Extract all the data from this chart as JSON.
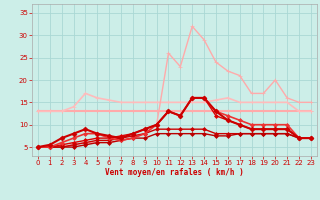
{
  "xlabel": "Vent moyen/en rafales ( km/h )",
  "xlim": [
    -0.5,
    23.5
  ],
  "ylim": [
    3,
    37
  ],
  "yticks": [
    5,
    10,
    15,
    20,
    25,
    30,
    35
  ],
  "xticks": [
    0,
    1,
    2,
    3,
    4,
    5,
    6,
    7,
    8,
    9,
    10,
    11,
    12,
    13,
    14,
    15,
    16,
    17,
    18,
    19,
    20,
    21,
    22,
    23
  ],
  "bg_color": "#cceee8",
  "grid_color": "#aad8d4",
  "lines": [
    {
      "y": [
        13,
        13,
        13,
        13,
        13,
        13,
        13,
        13,
        13,
        13,
        13,
        13,
        13,
        13,
        13,
        13,
        13,
        13,
        13,
        13,
        13,
        13,
        13,
        13
      ],
      "color": "#ffaaaa",
      "lw": 1.5,
      "marker": "+",
      "ms": 3,
      "zorder": 2
    },
    {
      "y": [
        13,
        13,
        13,
        14,
        17,
        16,
        15.5,
        15,
        15,
        15,
        15,
        15,
        15,
        15,
        15,
        15.5,
        16,
        15,
        15,
        15,
        15,
        15,
        13,
        13
      ],
      "color": "#ffbbbb",
      "lw": 1.2,
      "marker": "+",
      "ms": 3,
      "zorder": 2
    },
    {
      "y": [
        5,
        5,
        5,
        5.5,
        6,
        6,
        6,
        6.5,
        7,
        8,
        10,
        26,
        23,
        32,
        29,
        24,
        22,
        21,
        17,
        17,
        20,
        16,
        15,
        15
      ],
      "color": "#ffaaaa",
      "lw": 1.0,
      "marker": "+",
      "ms": 3,
      "zorder": 2
    },
    {
      "y": [
        5,
        5,
        6,
        7,
        8,
        8,
        7,
        6.5,
        7,
        8,
        10,
        13,
        12,
        16,
        16,
        13,
        12,
        11,
        10,
        10,
        10,
        10,
        7,
        7
      ],
      "color": "#ee3333",
      "lw": 1.2,
      "marker": "D",
      "ms": 2,
      "zorder": 4
    },
    {
      "y": [
        5,
        5.5,
        7,
        8,
        9,
        8,
        7.5,
        7,
        8,
        9,
        10,
        13,
        12,
        16,
        16,
        13,
        11,
        10,
        9,
        9,
        9,
        9,
        7,
        7
      ],
      "color": "#cc0000",
      "lw": 1.5,
      "marker": "D",
      "ms": 2.5,
      "zorder": 5
    },
    {
      "y": [
        5,
        5,
        5.5,
        6,
        6.5,
        7,
        7,
        7.5,
        8,
        9,
        10,
        13,
        12,
        16,
        16,
        12,
        11,
        10,
        9,
        9,
        9,
        9,
        7,
        7
      ],
      "color": "#dd0000",
      "lw": 1.0,
      "marker": "D",
      "ms": 2,
      "zorder": 3
    },
    {
      "y": [
        5,
        5,
        5,
        5.5,
        6,
        6.5,
        6.5,
        7,
        7.5,
        8,
        9,
        9,
        9,
        9,
        9,
        8,
        8,
        8,
        8,
        8,
        8,
        8,
        7,
        7
      ],
      "color": "#cc0000",
      "lw": 1.0,
      "marker": "D",
      "ms": 2,
      "zorder": 3
    },
    {
      "y": [
        5,
        5,
        5,
        5,
        5.5,
        6,
        6,
        6.5,
        7,
        7,
        8,
        8,
        8,
        8,
        8,
        7.5,
        7.5,
        8,
        8,
        8,
        8,
        8,
        7,
        7
      ],
      "color": "#bb0000",
      "lw": 1.0,
      "marker": "D",
      "ms": 2,
      "zorder": 3
    }
  ]
}
